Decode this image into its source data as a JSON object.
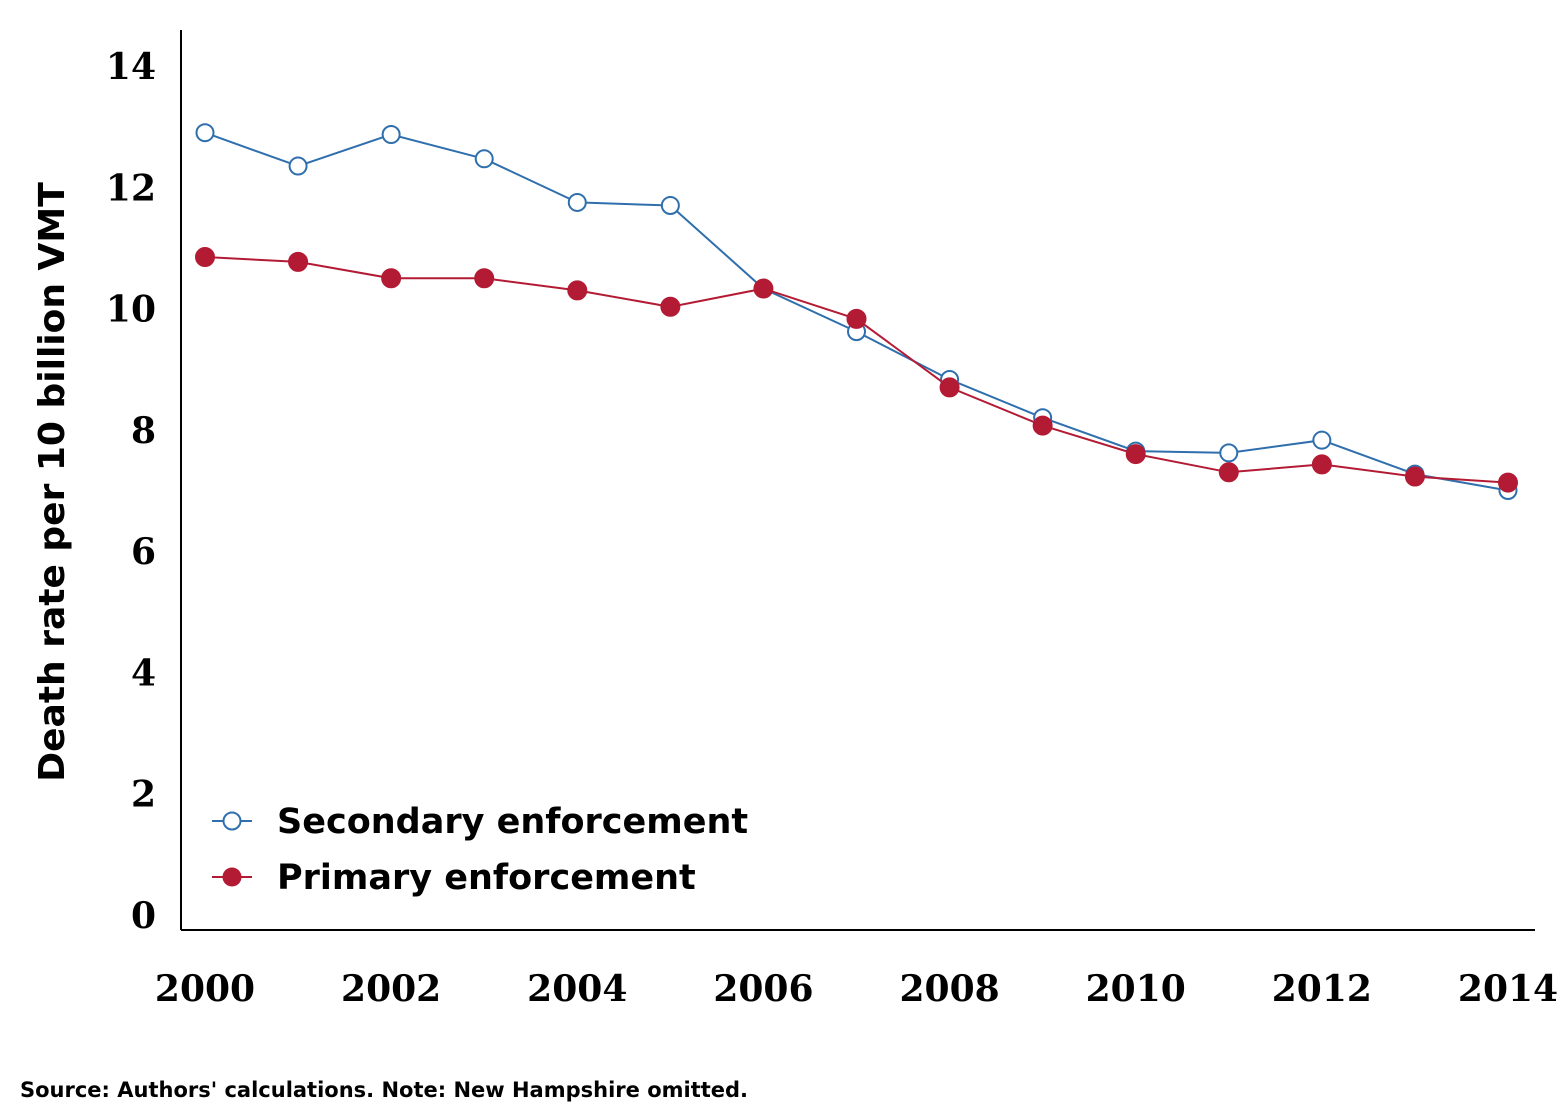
{
  "chart_data": {
    "type": "line",
    "title": "",
    "xlabel": "",
    "ylabel": "Death rate per 10 billion VMT",
    "x": [
      2000,
      2001,
      2002,
      2003,
      2004,
      2005,
      2006,
      2007,
      2008,
      2009,
      2010,
      2011,
      2012,
      2013,
      2014
    ],
    "xlim": [
      2000,
      2014
    ],
    "ylim": [
      0,
      14.5
    ],
    "x_ticks": [
      2000,
      2002,
      2004,
      2006,
      2008,
      2010,
      2012,
      2014
    ],
    "x_tick_labels": [
      "2000",
      "2002",
      "2004",
      "2006",
      "2008",
      "2010",
      "2012",
      "2014"
    ],
    "y_ticks": [
      0,
      2,
      4,
      6,
      8,
      10,
      12,
      14
    ],
    "y_tick_labels": [
      "0",
      "2",
      "4",
      "6",
      "8",
      "10",
      "12",
      "14"
    ],
    "grid": false,
    "legend_position": "bottom-left",
    "series": [
      {
        "name": "Secondary enforcement",
        "color": "#2f6fad",
        "marker": "hollow-circle",
        "values": [
          12.9,
          12.35,
          12.87,
          12.47,
          11.75,
          11.7,
          10.33,
          9.62,
          8.83,
          8.2,
          7.65,
          7.62,
          7.83,
          7.27,
          7.0
        ]
      },
      {
        "name": "Primary enforcement",
        "color": "#b31b34",
        "marker": "filled-circle",
        "values": [
          10.85,
          10.77,
          10.5,
          10.5,
          10.3,
          10.03,
          10.33,
          9.83,
          8.7,
          8.07,
          7.6,
          7.3,
          7.43,
          7.23,
          7.13
        ]
      }
    ]
  },
  "source_note": "Source: Authors' calculations. Note: New Hampshire omitted."
}
